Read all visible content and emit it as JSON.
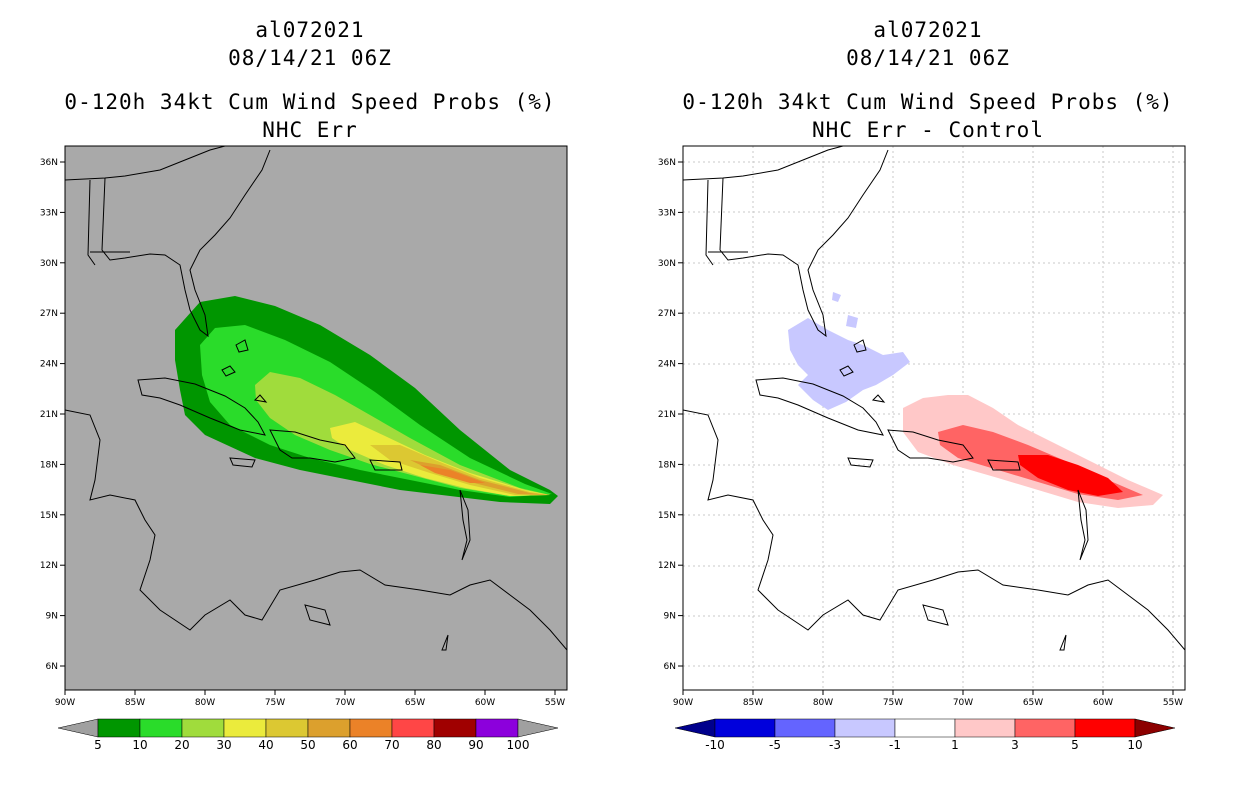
{
  "left": {
    "title_line1": "al072021",
    "title_line2": "08/14/21 06Z",
    "title_line3": "0-120h 34kt Cum Wind Speed Probs (%)",
    "title_line4": "NHC Err",
    "colorbar": {
      "labels": [
        "5",
        "10",
        "20",
        "30",
        "40",
        "50",
        "60",
        "70",
        "80",
        "90",
        "100"
      ],
      "colors": [
        "#a0a0a0",
        "#009600",
        "#2adc2a",
        "#a0dc3c",
        "#ebeb3c",
        "#dcc832",
        "#dca02d",
        "#eb8228",
        "#ff4646",
        "#a00000",
        "#8c00dc",
        "#a0a0a0"
      ]
    },
    "background_color": "#a9a9a9"
  },
  "right": {
    "title_line1": "al072021",
    "title_line2": "08/14/21 06Z",
    "title_line3": "0-120h 34kt Cum Wind Speed Probs (%)",
    "title_line4": "NHC Err - Control",
    "colorbar": {
      "labels": [
        "-10",
        "-5",
        "-3",
        "-1",
        "1",
        "3",
        "5",
        "10"
      ],
      "colors": [
        "#00008c",
        "#0000dc",
        "#6464ff",
        "#c8c8ff",
        "#ffffff",
        "#ffc8c8",
        "#ff6464",
        "#ff0000",
        "#8c0000"
      ]
    },
    "background_color": "#ffffff"
  },
  "axes": {
    "lon_labels": [
      "90W",
      "85W",
      "80W",
      "75W",
      "70W",
      "65W",
      "60W",
      "55W"
    ],
    "lat_labels": [
      "36N",
      "33N",
      "30N",
      "27N",
      "24N",
      "21N",
      "18N",
      "15N",
      "12N",
      "9N",
      "6N"
    ]
  }
}
